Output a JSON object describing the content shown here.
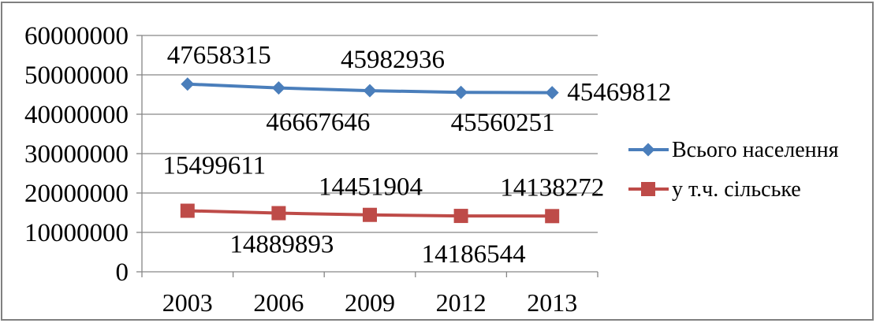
{
  "chart_data": {
    "type": "line",
    "categories": [
      "2003",
      "2006",
      "2009",
      "2012",
      "2013"
    ],
    "series": [
      {
        "name": "Всього населення",
        "values": [
          47658315,
          46667646,
          45982936,
          45560251,
          45469812
        ],
        "color": "#4a7ebb",
        "marker": "diamond"
      },
      {
        "name": "у т.ч. сільське",
        "values": [
          15499611,
          14889893,
          14451904,
          14186544,
          14138272
        ],
        "color": "#be4b48",
        "marker": "square"
      }
    ],
    "ylim": [
      0,
      60000000
    ],
    "yticks": [
      0,
      10000000,
      20000000,
      30000000,
      40000000,
      50000000,
      60000000
    ],
    "grid": true,
    "legend": "right",
    "data_labels": true,
    "axis_color": "#868686"
  }
}
